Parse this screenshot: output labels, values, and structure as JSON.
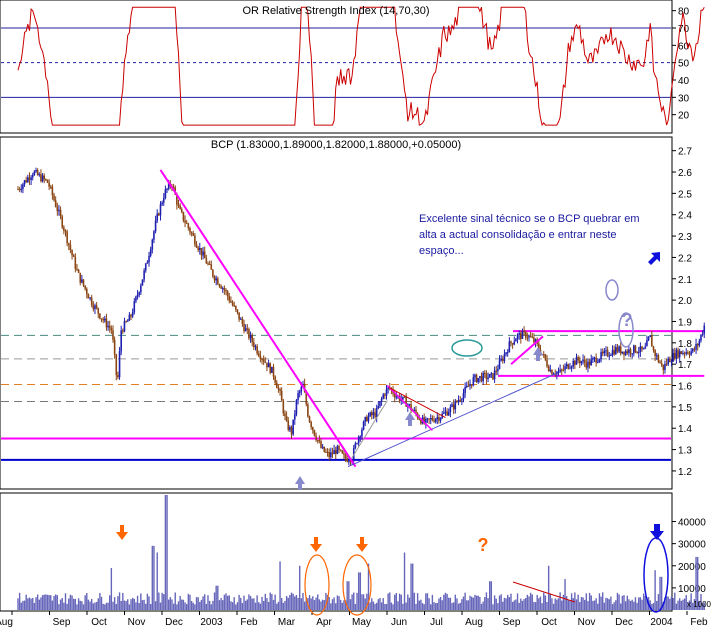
{
  "rsi_panel": {
    "title": "OR Relative Strength Index (14,70,30)",
    "ylim": [
      10,
      85
    ],
    "ticks": [
      20,
      30,
      40,
      50,
      60,
      70,
      80
    ],
    "overbought": 70,
    "midline": 50,
    "oversold": 30,
    "line_color": "#cc0000"
  },
  "chart_data": {
    "type": "candlestick",
    "title": "BCP (1.83000,1.89000,1.82000,1.88000,+0.05000)",
    "ylim": [
      1.12,
      2.75
    ],
    "yticks": [
      1.2,
      1.3,
      1.4,
      1.5,
      1.6,
      1.7,
      1.8,
      1.9,
      2.0,
      2.1,
      2.2,
      2.3,
      2.4,
      2.5,
      2.6,
      2.7
    ],
    "x_labels": [
      "Aug",
      "Sep",
      "Oct",
      "Nov",
      "Dec",
      "2003",
      "Feb",
      "Mar",
      "Apr",
      "May",
      "Jun",
      "Jul",
      "Aug",
      "Sep",
      "Oct",
      "Nov",
      "Dec",
      "2004",
      "Feb"
    ],
    "price_path": [
      {
        "m": 0.0,
        "p": 2.52
      },
      {
        "m": 0.4,
        "p": 2.6
      },
      {
        "m": 0.8,
        "p": 2.55
      },
      {
        "m": 1.2,
        "p": 2.35
      },
      {
        "m": 1.6,
        "p": 2.12
      },
      {
        "m": 2.0,
        "p": 1.98
      },
      {
        "m": 2.3,
        "p": 1.9
      },
      {
        "m": 2.5,
        "p": 1.86
      },
      {
        "m": 2.65,
        "p": 1.6
      },
      {
        "m": 2.75,
        "p": 1.86
      },
      {
        "m": 3.0,
        "p": 1.92
      },
      {
        "m": 3.4,
        "p": 2.15
      },
      {
        "m": 3.7,
        "p": 2.38
      },
      {
        "m": 3.9,
        "p": 2.5
      },
      {
        "m": 4.1,
        "p": 2.55
      },
      {
        "m": 4.3,
        "p": 2.42
      },
      {
        "m": 4.6,
        "p": 2.32
      },
      {
        "m": 4.9,
        "p": 2.22
      },
      {
        "m": 5.2,
        "p": 2.12
      },
      {
        "m": 5.5,
        "p": 2.05
      },
      {
        "m": 5.8,
        "p": 1.95
      },
      {
        "m": 6.1,
        "p": 1.85
      },
      {
        "m": 6.4,
        "p": 1.76
      },
      {
        "m": 6.8,
        "p": 1.66
      },
      {
        "m": 7.0,
        "p": 1.55
      },
      {
        "m": 7.15,
        "p": 1.42
      },
      {
        "m": 7.3,
        "p": 1.38
      },
      {
        "m": 7.45,
        "p": 1.55
      },
      {
        "m": 7.6,
        "p": 1.6
      },
      {
        "m": 7.75,
        "p": 1.45
      },
      {
        "m": 7.9,
        "p": 1.38
      },
      {
        "m": 8.1,
        "p": 1.3
      },
      {
        "m": 8.3,
        "p": 1.27
      },
      {
        "m": 8.5,
        "p": 1.3
      },
      {
        "m": 8.7,
        "p": 1.26
      },
      {
        "m": 8.9,
        "p": 1.26
      },
      {
        "m": 9.05,
        "p": 1.35
      },
      {
        "m": 9.3,
        "p": 1.45
      },
      {
        "m": 9.55,
        "p": 1.47
      },
      {
        "m": 9.75,
        "p": 1.56
      },
      {
        "m": 9.9,
        "p": 1.59
      },
      {
        "m": 10.1,
        "p": 1.55
      },
      {
        "m": 10.35,
        "p": 1.52
      },
      {
        "m": 10.6,
        "p": 1.47
      },
      {
        "m": 10.85,
        "p": 1.42
      },
      {
        "m": 11.0,
        "p": 1.44
      },
      {
        "m": 11.3,
        "p": 1.46
      },
      {
        "m": 11.6,
        "p": 1.5
      },
      {
        "m": 11.9,
        "p": 1.57
      },
      {
        "m": 12.15,
        "p": 1.63
      },
      {
        "m": 12.4,
        "p": 1.64
      },
      {
        "m": 12.65,
        "p": 1.64
      },
      {
        "m": 12.9,
        "p": 1.72
      },
      {
        "m": 13.1,
        "p": 1.79
      },
      {
        "m": 13.3,
        "p": 1.83
      },
      {
        "m": 13.55,
        "p": 1.84
      },
      {
        "m": 13.8,
        "p": 1.8
      },
      {
        "m": 14.0,
        "p": 1.74
      },
      {
        "m": 14.2,
        "p": 1.67
      },
      {
        "m": 14.45,
        "p": 1.66
      },
      {
        "m": 14.7,
        "p": 1.7
      },
      {
        "m": 14.95,
        "p": 1.72
      },
      {
        "m": 15.2,
        "p": 1.7
      },
      {
        "m": 15.45,
        "p": 1.73
      },
      {
        "m": 15.7,
        "p": 1.75
      },
      {
        "m": 15.95,
        "p": 1.77
      },
      {
        "m": 16.2,
        "p": 1.76
      },
      {
        "m": 16.45,
        "p": 1.77
      },
      {
        "m": 16.7,
        "p": 1.76
      },
      {
        "m": 16.85,
        "p": 1.83
      },
      {
        "m": 16.95,
        "p": 1.76
      },
      {
        "m": 17.2,
        "p": 1.68
      },
      {
        "m": 17.35,
        "p": 1.72
      },
      {
        "m": 17.55,
        "p": 1.75
      },
      {
        "m": 17.8,
        "p": 1.76
      },
      {
        "m": 18.0,
        "p": 1.76
      },
      {
        "m": 18.15,
        "p": 1.8
      },
      {
        "m": 18.3,
        "p": 1.88
      }
    ],
    "horizontal_lines": [
      {
        "value": 1.835,
        "style": "dashed",
        "color": "#4a8a80"
      },
      {
        "value": 1.725,
        "style": "dashed",
        "color": "#999999"
      },
      {
        "value": 1.605,
        "style": "dashed",
        "color": "#e08020"
      },
      {
        "value": 1.525,
        "style": "dashed",
        "color": "#777777"
      },
      {
        "value": 1.352,
        "style": "solid",
        "color": "#ff00ff"
      },
      {
        "value": 1.252,
        "style": "solid",
        "color": "#0000cc"
      },
      {
        "value": 1.855,
        "style": "solid",
        "color": "#ff00ff",
        "from_m": 13.2,
        "to_m": 18.3
      },
      {
        "value": 1.645,
        "style": "solid",
        "color": "#ff00ff",
        "from_m": 12.8,
        "to_m": 18.3
      }
    ],
    "trend_lines": [
      {
        "from": {
          "m": 3.8,
          "p": 2.61
        },
        "to": {
          "m": 9.0,
          "p": 1.22
        },
        "color": "#ff00ff",
        "width": 2
      },
      {
        "from": {
          "m": 8.8,
          "p": 1.22
        },
        "to": {
          "m": 14.4,
          "p": 1.66
        },
        "color": "#5050cc",
        "width": 1
      },
      {
        "from": {
          "m": 13.15,
          "p": 1.7
        },
        "to": {
          "m": 14.0,
          "p": 1.83
        },
        "color": "#ff00ff",
        "width": 2
      },
      {
        "from": {
          "m": 9.85,
          "p": 1.6
        },
        "to": {
          "m": 11.05,
          "p": 1.39
        },
        "color": "#ff00ff",
        "width": 1.5
      },
      {
        "from": {
          "m": 9.9,
          "p": 1.59
        },
        "to": {
          "m": 11.4,
          "p": 1.45
        },
        "color": "#cc0000",
        "width": 1
      },
      {
        "from": {
          "m": 8.9,
          "p": 1.26
        },
        "to": {
          "m": 9.85,
          "p": 1.53
        },
        "color": "#999999",
        "width": 1
      }
    ],
    "annotation_text": "Excelente sinal técnico se o BCP quebrar em alta a actual consolidação e entrar neste espaço...",
    "volume": {
      "ylim": [
        0,
        52000
      ],
      "ticks": [
        10000,
        20000,
        30000,
        40000
      ],
      "scale_label": "x 1000",
      "bar_color": "#6666bb",
      "peaks": [
        {
          "m": 2.5,
          "v": 19000
        },
        {
          "m": 3.6,
          "v": 29000
        },
        {
          "m": 3.7,
          "v": 26000
        },
        {
          "m": 3.95,
          "v": 52000
        },
        {
          "m": 5.3,
          "v": 11000
        },
        {
          "m": 7.0,
          "v": 22000
        },
        {
          "m": 7.5,
          "v": 20000
        },
        {
          "m": 8.8,
          "v": 13000
        },
        {
          "m": 9.1,
          "v": 17000
        },
        {
          "m": 9.35,
          "v": 21000
        },
        {
          "m": 10.3,
          "v": 26000
        },
        {
          "m": 10.5,
          "v": 21000
        },
        {
          "m": 12.6,
          "v": 13000
        },
        {
          "m": 14.15,
          "v": 20000
        },
        {
          "m": 14.6,
          "v": 14000
        },
        {
          "m": 17.0,
          "v": 18000
        },
        {
          "m": 17.15,
          "v": 15000
        },
        {
          "m": 18.1,
          "v": 24000
        }
      ]
    }
  }
}
